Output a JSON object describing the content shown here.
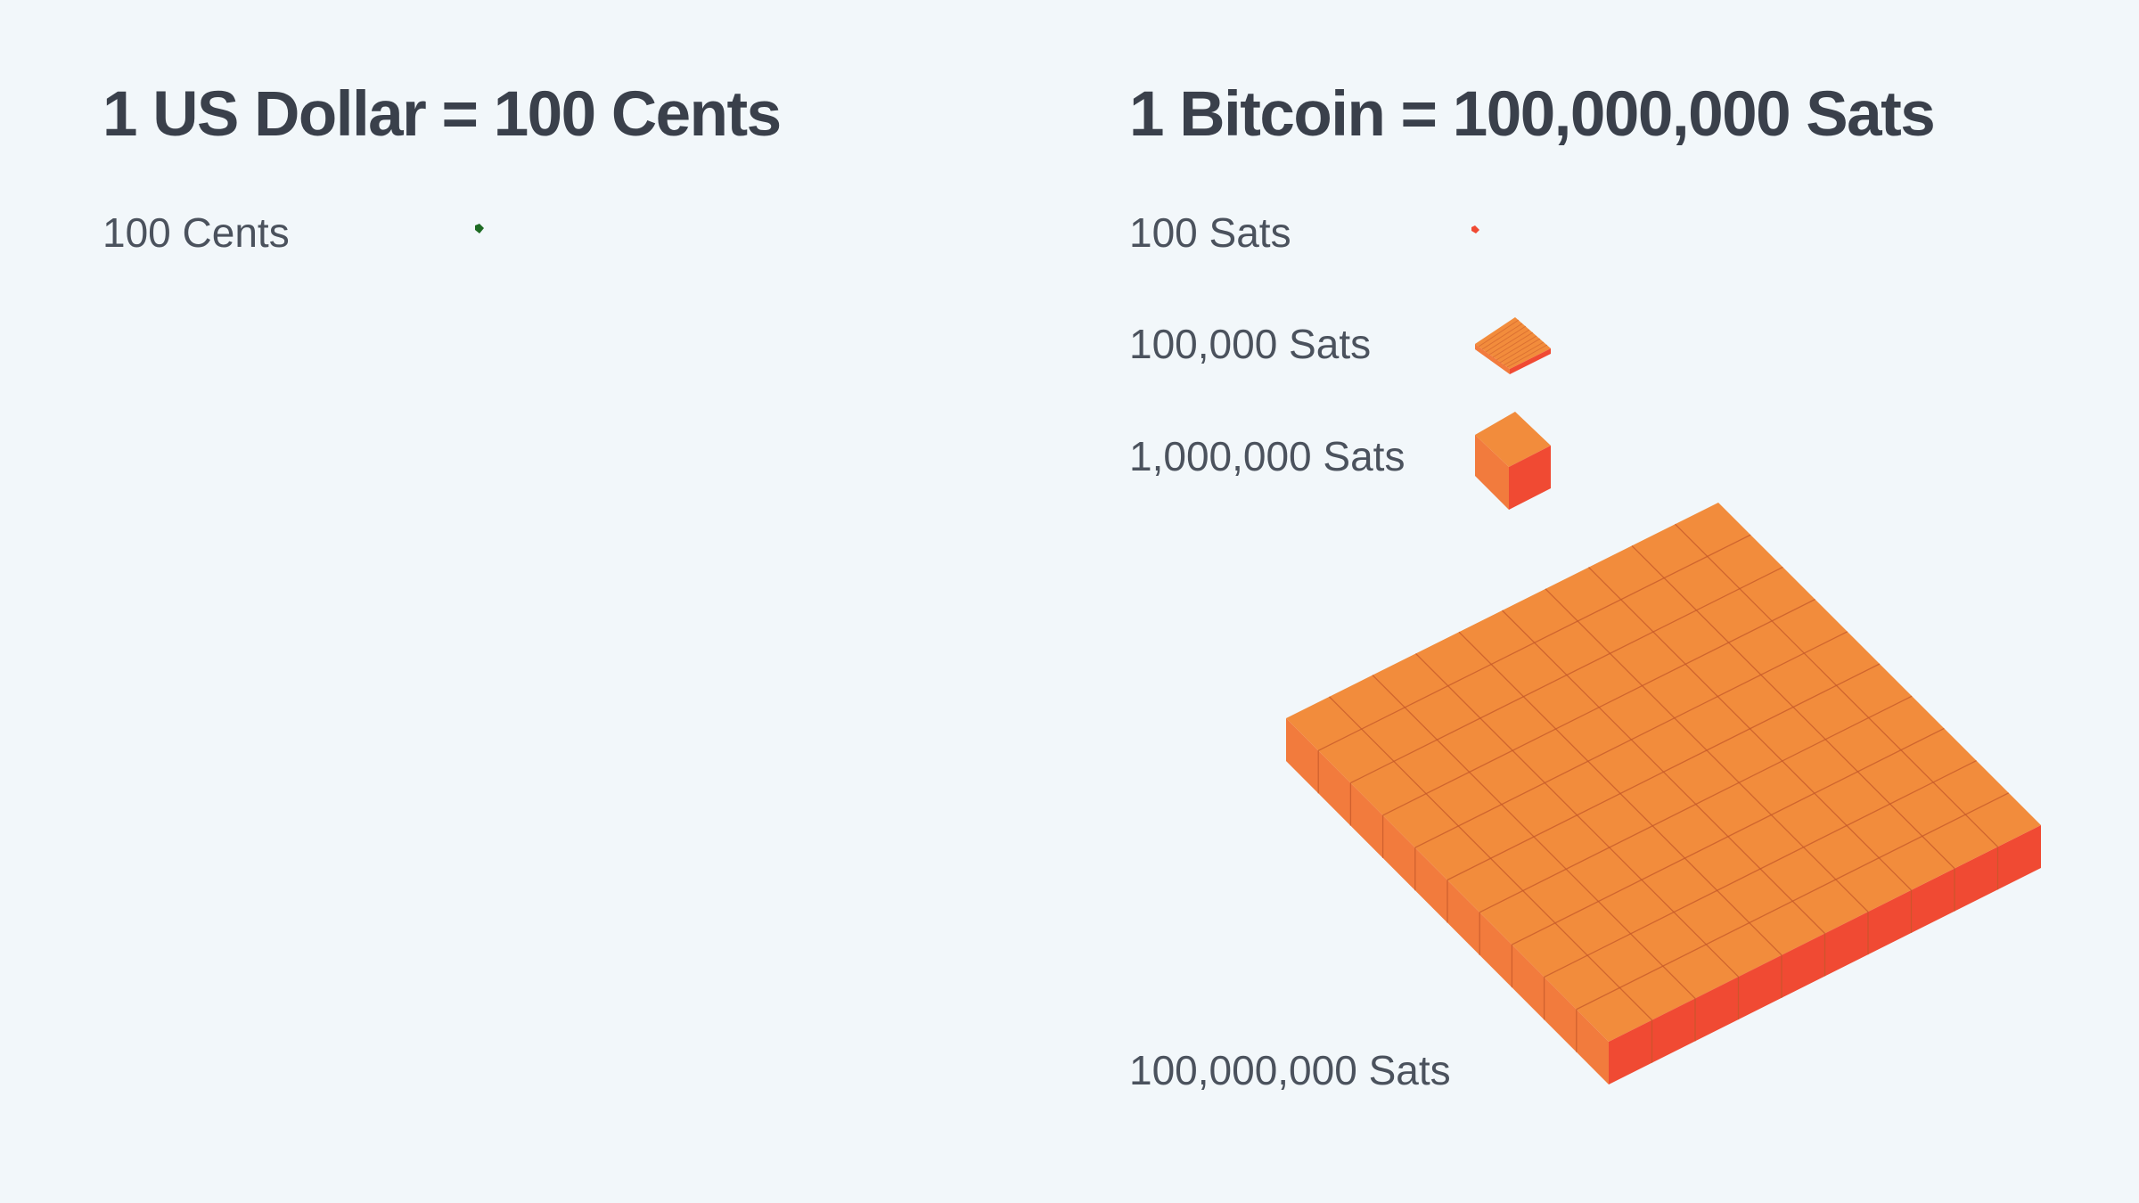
{
  "left": {
    "title": "1 US Dollar = 100 Cents",
    "rows": [
      {
        "label": "100 Cents"
      }
    ]
  },
  "right": {
    "title": "1 Bitcoin = 100,000,000 Sats",
    "rows": [
      {
        "label": "100 Sats"
      },
      {
        "label": "100,000 Sats"
      },
      {
        "label": "1,000,000 Sats"
      },
      {
        "label": "100,000,000 Sats"
      }
    ]
  },
  "colors": {
    "background": "#f2f7fa",
    "title_text": "#3a404b",
    "label_text": "#4b525d",
    "cent": "#1e6b23",
    "sat_top": "#f28c3c",
    "sat_side_left": "#f27b3d",
    "sat_side_right": "#f04a33",
    "grid_line": "#c95a2a"
  }
}
